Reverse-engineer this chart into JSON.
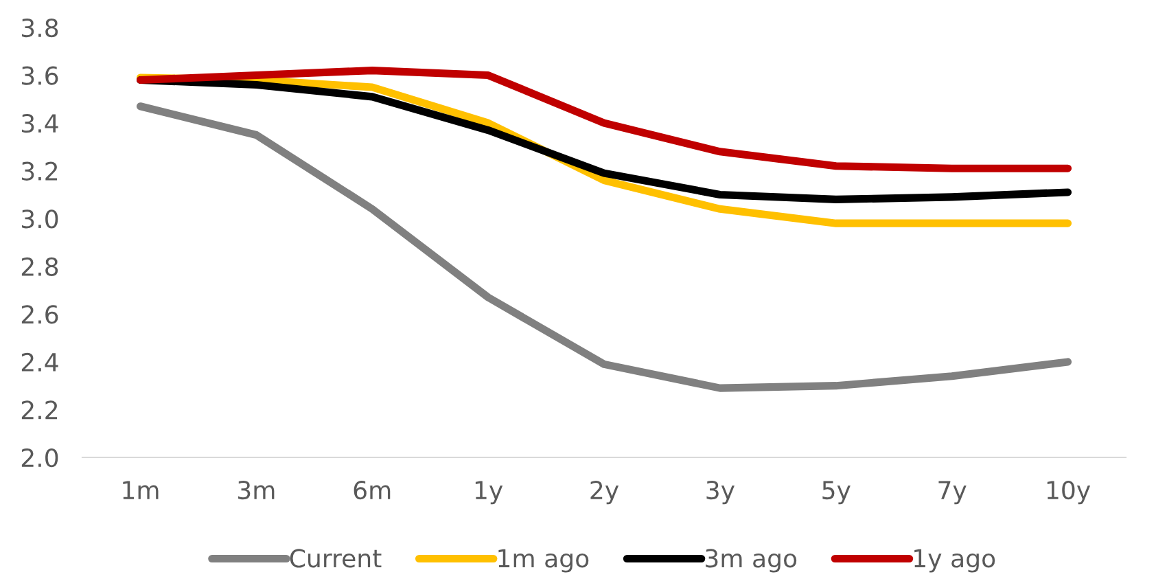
{
  "chart_data": {
    "type": "line",
    "categories": [
      "1m",
      "3m",
      "6m",
      "1y",
      "2y",
      "3y",
      "5y",
      "7y",
      "10y"
    ],
    "series": [
      {
        "name": "Current",
        "color": "#808080",
        "values": [
          3.47,
          3.35,
          3.04,
          2.67,
          2.39,
          2.29,
          2.3,
          2.34,
          2.4
        ]
      },
      {
        "name": "1m ago",
        "color": "#ffc000",
        "values": [
          3.59,
          3.58,
          3.55,
          3.4,
          3.16,
          3.04,
          2.98,
          2.98,
          2.98
        ]
      },
      {
        "name": "3m ago",
        "color": "#000000",
        "values": [
          3.58,
          3.56,
          3.51,
          3.37,
          3.19,
          3.1,
          3.08,
          3.09,
          3.11
        ]
      },
      {
        "name": "1y ago",
        "color": "#c00000",
        "values": [
          3.58,
          3.6,
          3.62,
          3.6,
          3.4,
          3.28,
          3.22,
          3.21,
          3.21
        ]
      }
    ],
    "ylim": [
      2.0,
      3.8
    ],
    "yticks": [
      {
        "value": 2.0,
        "label": "2.0"
      },
      {
        "value": 2.2,
        "label": "2.2"
      },
      {
        "value": 2.4,
        "label": "2.4"
      },
      {
        "value": 2.6,
        "label": "2.6"
      },
      {
        "value": 2.8,
        "label": "2.8"
      },
      {
        "value": 3.0,
        "label": "3.0"
      },
      {
        "value": 3.2,
        "label": "3.2"
      },
      {
        "value": 3.4,
        "label": "3.4"
      },
      {
        "value": 3.6,
        "label": "3.6"
      },
      {
        "value": 3.8,
        "label": "3.8"
      }
    ],
    "grid": false,
    "legend": "bottom",
    "marker": "none",
    "line_style": "solid"
  }
}
